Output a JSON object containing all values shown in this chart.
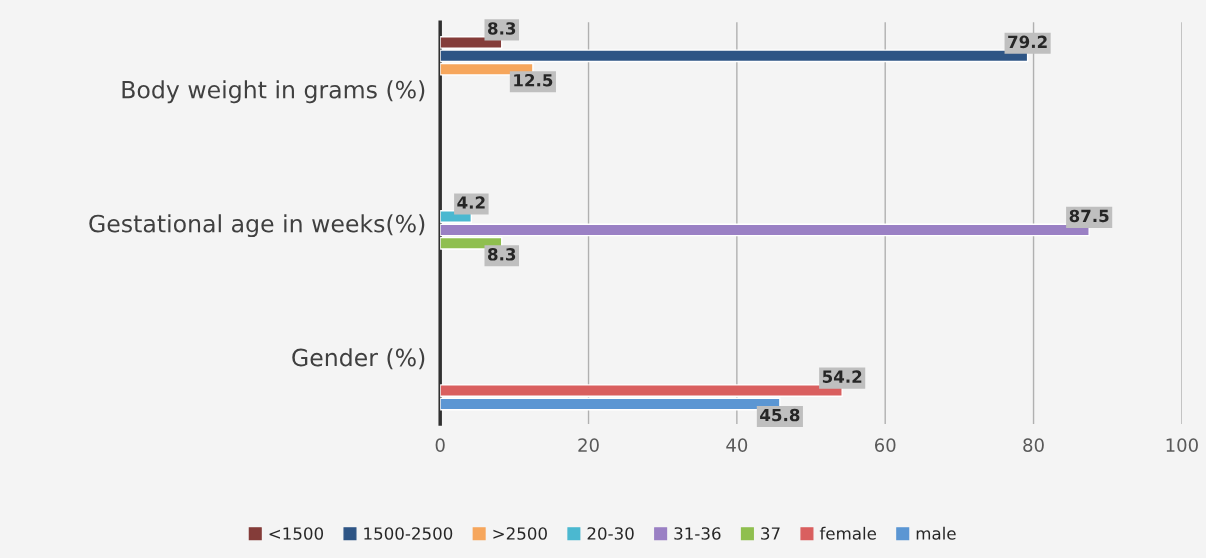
{
  "chart_data": {
    "type": "bar",
    "orientation": "horizontal",
    "categories": [
      "Body weight in grams (%)",
      "Gestational age in weeks(%)",
      "Gender (%)"
    ],
    "series": [
      {
        "name": "<1500",
        "color": "#843c39",
        "values": [
          8.3,
          null,
          null
        ]
      },
      {
        "name": "1500-2500",
        "color": "#2e5585",
        "values": [
          79.2,
          null,
          null
        ]
      },
      {
        "name": ">2500",
        "color": "#f6a65c",
        "values": [
          12.5,
          null,
          null
        ]
      },
      {
        "name": "20-30",
        "color": "#4bb8d0",
        "values": [
          null,
          4.2,
          null
        ]
      },
      {
        "name": "31-36",
        "color": "#9a80c4",
        "values": [
          null,
          87.5,
          null
        ]
      },
      {
        "name": "37",
        "color": "#8fbf4f",
        "values": [
          null,
          8.3,
          null
        ]
      },
      {
        "name": "female",
        "color": "#d95f5f",
        "values": [
          null,
          null,
          54.2
        ]
      },
      {
        "name": "male",
        "color": "#5b96d3",
        "values": [
          null,
          null,
          45.8
        ]
      }
    ],
    "xlim": [
      0,
      100
    ],
    "xticks": [
      0,
      20,
      40,
      60,
      80,
      100
    ],
    "grid": "x",
    "legend": "bottom",
    "data_labels": true
  }
}
